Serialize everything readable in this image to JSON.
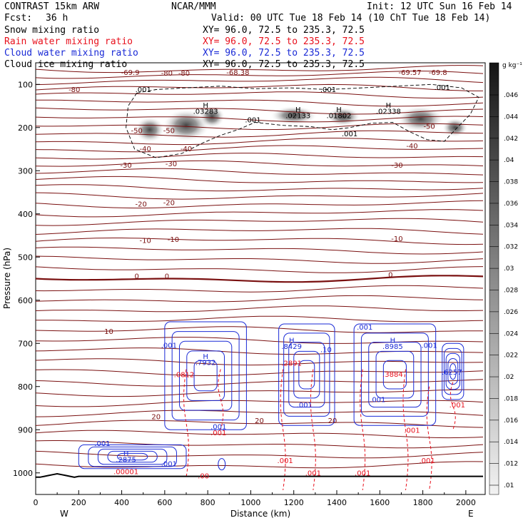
{
  "header": {
    "model": "CONTRAST 15km ARW",
    "org": "NCAR/MMM",
    "init": "Init: 12 UTC Sun 16 Feb 14",
    "fcst_label": "Fcst:",
    "fcst_value": "36 h",
    "valid": "Valid: 00 UTC Tue 18 Feb 14 (10 ChT Tue 18 Feb 14)"
  },
  "fields": [
    {
      "name": "Snow mixing ratio",
      "xy": "XY=  96.0, 72.5 to 235.3, 72.5",
      "color": "#000000"
    },
    {
      "name": "Rain water mixing ratio",
      "xy": "XY=  96.0, 72.5 to 235.3, 72.5",
      "color": "#e8101c"
    },
    {
      "name": "Cloud water mixing ratio",
      "xy": "XY=  96.0, 72.5 to 235.3, 72.5",
      "color": "#1a2ad6"
    },
    {
      "name": "Cloud ice mixing ratio",
      "xy": "XY=  96.0, 72.5 to 235.3, 72.5",
      "color": "#000000"
    }
  ],
  "axes": {
    "xlabel": "Distance (km)",
    "ylabel": "Pressure (hPa)",
    "left_label": "W",
    "right_label": "E"
  },
  "colorbar": {
    "unit": "g kg⁻¹",
    "labels": [
      ".046",
      ".044",
      ".042",
      ".04",
      ".038",
      ".036",
      ".034",
      ".032",
      ".03",
      ".028",
      ".026",
      ".024",
      ".022",
      ".02",
      ".018",
      ".016",
      ".014",
      ".012",
      ".01"
    ]
  },
  "chart_data": {
    "type": "heatmap",
    "xlabel": "Distance (km)",
    "ylabel": "Pressure (hPa)",
    "xlim": [
      0,
      2090
    ],
    "ylim": [
      1050,
      50
    ],
    "xticks": [
      "0",
      "200",
      "400",
      "600",
      "800",
      "1000",
      "1200",
      "1400",
      "1600",
      "1800",
      "2000"
    ],
    "xtick_values": [
      0,
      200,
      400,
      600,
      800,
      1000,
      1200,
      1400,
      1600,
      1800,
      2000
    ],
    "yticks": [
      "100",
      "200",
      "300",
      "400",
      "500",
      "600",
      "700",
      "800",
      "900",
      "1000"
    ],
    "ytick_values": [
      100,
      200,
      300,
      400,
      500,
      600,
      700,
      800,
      900,
      1000
    ],
    "isotherm_levels": [
      -80,
      -70,
      -60,
      -50,
      -40,
      -30,
      -20,
      -10,
      0,
      10,
      20,
      30
    ],
    "isotherm_labels": [
      {
        "text": "-69.9",
        "x": 440,
        "p": 78
      },
      {
        "text": "-80",
        "x": 610,
        "p": 80
      },
      {
        "text": "-80",
        "x": 690,
        "p": 80
      },
      {
        "text": "-68.38",
        "x": 940,
        "p": 78
      },
      {
        "text": "-69.57",
        "x": 1740,
        "p": 78
      },
      {
        "text": "-69.8",
        "x": 1870,
        "p": 78
      },
      {
        "text": "-80",
        "x": 180,
        "p": 118
      },
      {
        "text": "-50",
        "x": 470,
        "p": 213
      },
      {
        "text": "-50",
        "x": 620,
        "p": 213
      },
      {
        "text": "-50",
        "x": 1830,
        "p": 203
      },
      {
        "text": "-40",
        "x": 510,
        "p": 255
      },
      {
        "text": "-40",
        "x": 700,
        "p": 255
      },
      {
        "text": "-40",
        "x": 1750,
        "p": 248
      },
      {
        "text": "-30",
        "x": 420,
        "p": 293
      },
      {
        "text": "-30",
        "x": 630,
        "p": 290
      },
      {
        "text": "-30",
        "x": 1680,
        "p": 293
      },
      {
        "text": "-20",
        "x": 490,
        "p": 383
      },
      {
        "text": "-20",
        "x": 620,
        "p": 380
      },
      {
        "text": "-10",
        "x": 510,
        "p": 467
      },
      {
        "text": "-10",
        "x": 640,
        "p": 465
      },
      {
        "text": "-10",
        "x": 1680,
        "p": 463
      },
      {
        "text": "0",
        "x": 470,
        "p": 550
      },
      {
        "text": "0",
        "x": 610,
        "p": 550
      },
      {
        "text": "0",
        "x": 1650,
        "p": 547
      },
      {
        "text": "10",
        "x": 340,
        "p": 678
      },
      {
        "text": "20",
        "x": 560,
        "p": 876
      },
      {
        "text": "20",
        "x": 1040,
        "p": 885
      },
      {
        "text": "20",
        "x": 1380,
        "p": 885
      }
    ],
    "cloud_ice_contours": [
      {
        "text": ".001",
        "x": 500,
        "p": 118
      },
      {
        "text": ".001",
        "x": 1010,
        "p": 188
      },
      {
        "text": ".001",
        "x": 1360,
        "p": 118
      },
      {
        "text": ".001",
        "x": 1460,
        "p": 220
      },
      {
        "text": ".001",
        "x": 1890,
        "p": 113
      }
    ],
    "snow_maxima": [
      {
        "label": "H",
        "value": ".03283",
        "x": 790,
        "p": 168
      },
      {
        "label": "H",
        "value": ".02133",
        "x": 1220,
        "p": 178
      },
      {
        "label": "H",
        "value": ".01802",
        "x": 1410,
        "p": 178
      },
      {
        "label": "H",
        "value": ".02338",
        "x": 1640,
        "p": 168
      }
    ],
    "cloud_water_maxima": [
      {
        "label": "H",
        "value": ".7932",
        "x": 790,
        "p": 750
      },
      {
        "label": "H",
        "value": ".8429",
        "x": 1190,
        "p": 713
      },
      {
        "label": "H",
        "value": ".8985",
        "x": 1660,
        "p": 713
      },
      {
        "label": "",
        "value": ".6257",
        "x": 1935,
        "p": 772
      },
      {
        "label": "H",
        "value": ".2875",
        "x": 420,
        "p": 975
      }
    ],
    "cloud_water_contours": [
      {
        "text": ".001",
        "x": 620,
        "p": 710
      },
      {
        "text": ".001",
        "x": 1530,
        "p": 668
      },
      {
        "text": ".001",
        "x": 1830,
        "p": 710
      },
      {
        "text": ".001",
        "x": 1250,
        "p": 848
      },
      {
        "text": ".001",
        "x": 1590,
        "p": 836
      },
      {
        "text": ".001",
        "x": 310,
        "p": 938
      },
      {
        "text": ".001",
        "x": 620,
        "p": 985
      },
      {
        "text": ".001",
        "x": 850,
        "p": 899
      },
      {
        "text": ".10",
        "x": 1350,
        "p": 720
      }
    ],
    "rain_water_contours": [
      {
        "text": ".2891",
        "x": 1190,
        "p": 752
      },
      {
        "text": ".3884",
        "x": 1660,
        "p": 777
      },
      {
        "text": ".0812",
        "x": 690,
        "p": 778
      },
      {
        "text": ".001",
        "x": 850,
        "p": 913
      },
      {
        "text": ".001",
        "x": 1160,
        "p": 977
      },
      {
        "text": ".001",
        "x": 1290,
        "p": 1006
      },
      {
        "text": ".001",
        "x": 1520,
        "p": 1006
      },
      {
        "text": ".001",
        "x": 1750,
        "p": 907
      },
      {
        "text": ".001",
        "x": 1820,
        "p": 977
      },
      {
        "text": ".001",
        "x": 1960,
        "p": 848
      },
      {
        "text": ".00001",
        "x": 420,
        "p": 1003
      },
      {
        "text": ".00",
        "x": 780,
        "p": 1013
      }
    ]
  }
}
